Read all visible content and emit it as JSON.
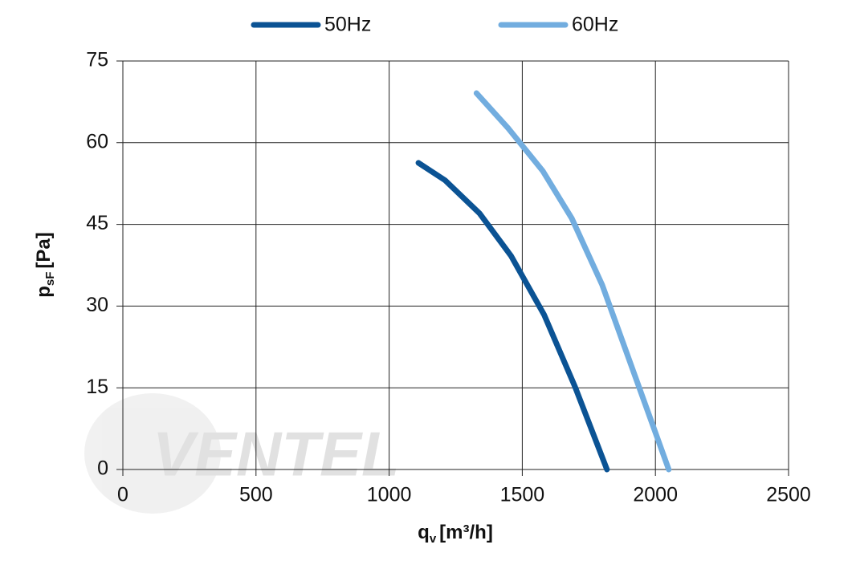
{
  "chart_data": {
    "type": "line",
    "x_label": [
      "q",
      "v",
      "[m³/h]"
    ],
    "y_label": [
      "p",
      "sF",
      "[Pa]"
    ],
    "watermark": "VENTEL",
    "xlim": [
      0,
      2500
    ],
    "xticks": [
      0,
      500,
      1000,
      1500,
      2000,
      2500
    ],
    "ylim": [
      0,
      75
    ],
    "yticks": [
      0,
      15,
      30,
      45,
      60,
      75
    ],
    "grid": true,
    "legend": "top",
    "series": [
      {
        "name": "50Hz",
        "color": "#0b5394",
        "x": [
          1110,
          1210,
          1340,
          1458,
          1582,
          1698,
          1818
        ],
        "values": [
          56.3,
          53.1,
          47,
          39.2,
          28.4,
          15.2,
          0
        ]
      },
      {
        "name": "60Hz",
        "color": "#72addf",
        "x": [
          1328,
          1448,
          1577,
          1686,
          1800,
          2050
        ],
        "values": [
          69.1,
          62.6,
          54.8,
          46.1,
          33.9,
          0
        ]
      }
    ]
  }
}
